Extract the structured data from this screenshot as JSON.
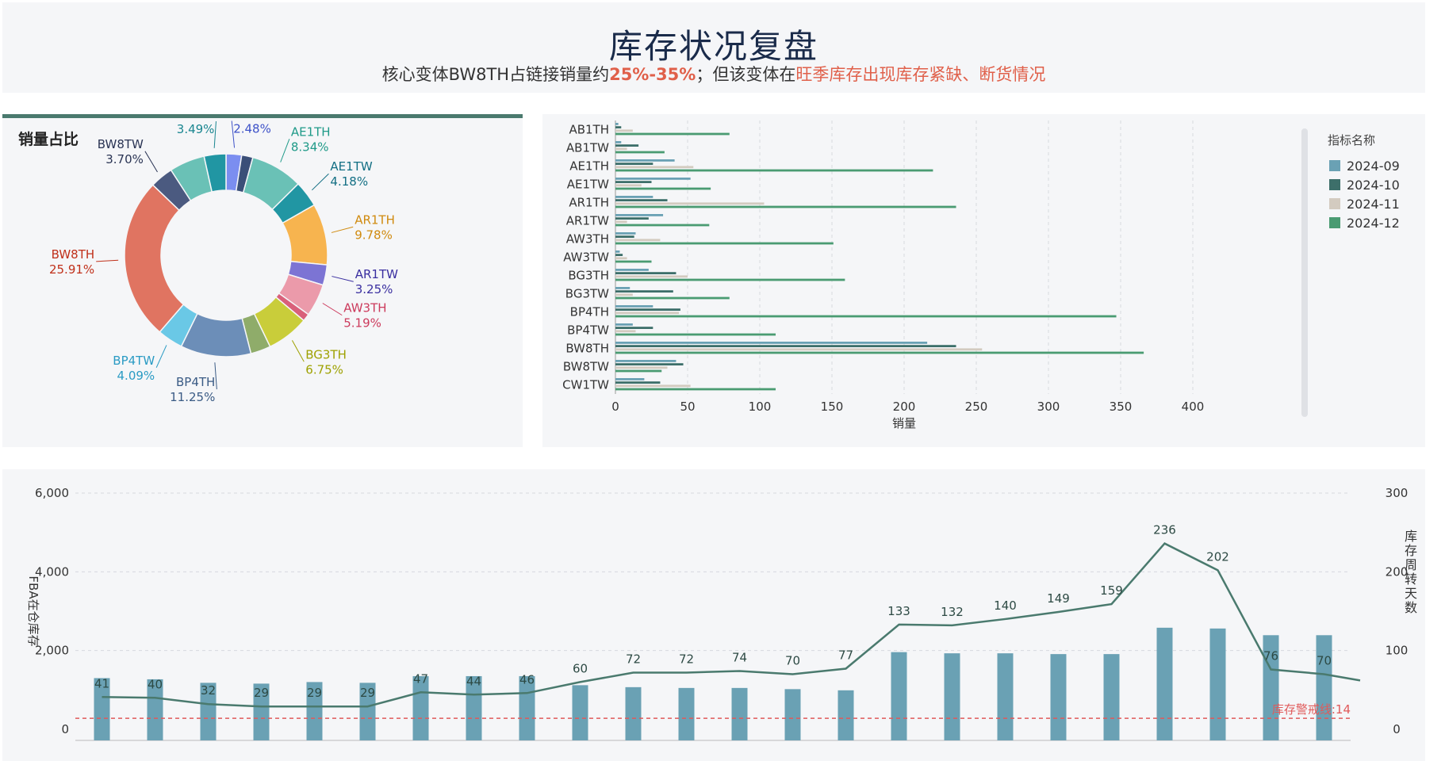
{
  "header": {
    "title": "库存状况复盘",
    "subtitle_parts": [
      "核心变体BW8TH占链接销量约",
      "25%-35%",
      "；但该变体在",
      "旺季库存出现库存紧缺、断货情况"
    ]
  },
  "colors": {
    "accent": "#e0604a",
    "title": "#1a2b4a",
    "teal_bar": "#6aa1b4",
    "line": "#4a7a6e",
    "warning": "#e05a5a"
  },
  "pie_panel": {
    "title": "销量占比"
  },
  "bar_panel": {
    "legend_title": "指标名称",
    "x_axis_label": "销量"
  },
  "combo_panel": {
    "y_left_label": "FBA在仓库存",
    "y_right_label": "库存周转天数",
    "warning_label": "库存警戒线:14"
  },
  "chart_data": [
    {
      "type": "pie",
      "title": "销量占比",
      "slices": [
        {
          "name": "AB1TH",
          "pct": 2.48,
          "color": "#7b8ef0"
        },
        {
          "name": "AB1TW",
          "pct": 1.8,
          "color": "#3b4f78"
        },
        {
          "name": "AE1TH",
          "pct": 8.34,
          "color": "#6ac1b6"
        },
        {
          "name": "AE1TW",
          "pct": 4.18,
          "color": "#2196a3"
        },
        {
          "name": "AR1TH",
          "pct": 9.78,
          "color": "#f7b44f"
        },
        {
          "name": "AR1TW",
          "pct": 3.25,
          "color": "#7c74d4"
        },
        {
          "name": "AW3TH",
          "pct": 5.19,
          "color": "#eb9aaa"
        },
        {
          "name": "AW3TW",
          "pct": 1.2,
          "color": "#d9607a"
        },
        {
          "name": "BG3TH",
          "pct": 6.75,
          "color": "#c9cd3a"
        },
        {
          "name": "BG3TW",
          "pct": 3.2,
          "color": "#8fac6a"
        },
        {
          "name": "BP4TH",
          "pct": 11.25,
          "color": "#6c8eb8"
        },
        {
          "name": "BP4TW",
          "pct": 4.09,
          "color": "#6ac8e6"
        },
        {
          "name": "BW8TH",
          "pct": 25.91,
          "color": "#e07461"
        },
        {
          "name": "BW8TW",
          "pct": 3.7,
          "color": "#4b5a80"
        },
        {
          "name": "CW1TH",
          "pct": 5.66,
          "color": "#6ac1b6"
        },
        {
          "name": "CW1TW",
          "pct": 3.49,
          "color": "#2196a3"
        }
      ],
      "labels": [
        {
          "name": "AB1TH",
          "text": "2.48%",
          "color": "#3e52c8"
        },
        {
          "name": "AE1TH",
          "text": "8.34%",
          "color": "#1f9a88"
        },
        {
          "name": "AE1TW",
          "text": "4.18%",
          "color": "#136f84"
        },
        {
          "name": "AR1TH",
          "text": "9.78%",
          "color": "#d08a0e"
        },
        {
          "name": "AR1TW",
          "text": "3.25%",
          "color": "#3a2fa0"
        },
        {
          "name": "AW3TH",
          "text": "5.19%",
          "color": "#cc3a5c"
        },
        {
          "name": "BG3TH",
          "text": "6.75%",
          "color": "#9ea100"
        },
        {
          "name": "BP4TH",
          "text": "11.25%",
          "color": "#3a5b85"
        },
        {
          "name": "BP4TW",
          "text": "4.09%",
          "color": "#2a9bc4"
        },
        {
          "name": "BW8TH",
          "text": "25.91%",
          "color": "#c0301a"
        },
        {
          "name": "BW8TW",
          "text": "3.70%",
          "color": "#2a3454"
        },
        {
          "name": "CW1TW",
          "text": "3.49%",
          "color": "#1a8690"
        }
      ]
    },
    {
      "type": "bar",
      "orientation": "horizontal",
      "categories": [
        "AB1TH",
        "AB1TW",
        "AE1TH",
        "AE1TW",
        "AR1TH",
        "AR1TW",
        "AW3TH",
        "AW3TW",
        "BG3TH",
        "BG3TW",
        "BP4TH",
        "BP4TW",
        "BW8TH",
        "BW8TW",
        "CW1TW"
      ],
      "xlabel": "销量",
      "xlim": [
        0,
        400
      ],
      "xticks": [
        0,
        50,
        100,
        150,
        200,
        250,
        300,
        350,
        400
      ],
      "legend_title": "指标名称",
      "legend_position": "right",
      "series": [
        {
          "name": "2024-09",
          "color": "#6aa1b4",
          "values": [
            2,
            4,
            41,
            52,
            26,
            33,
            14,
            3,
            23,
            10,
            26,
            12,
            216,
            42,
            20
          ]
        },
        {
          "name": "2024-10",
          "color": "#3d6f6a",
          "values": [
            4,
            16,
            26,
            25,
            36,
            23,
            13,
            5,
            42,
            40,
            45,
            26,
            236,
            47,
            31
          ]
        },
        {
          "name": "2024-11",
          "color": "#d3cbc0",
          "values": [
            12,
            8,
            54,
            18,
            103,
            8,
            31,
            8,
            50,
            12,
            44,
            14,
            254,
            36,
            52
          ]
        },
        {
          "name": "2024-12",
          "color": "#4a9b72",
          "values": [
            79,
            34,
            220,
            66,
            236,
            65,
            151,
            25,
            159,
            79,
            347,
            111,
            366,
            32,
            111
          ]
        }
      ]
    },
    {
      "type": "bar+line",
      "x_count": 24,
      "y_left": {
        "label": "FBA在仓库存",
        "ticks": [
          0,
          2000,
          4000,
          6000
        ],
        "tick_labels": [
          "0",
          "2,000",
          "4,000",
          "6,000"
        ],
        "lim": [
          0,
          6000
        ]
      },
      "y_right": {
        "label": "库存周转天数",
        "ticks": [
          0,
          100,
          200,
          300
        ],
        "tick_labels": [
          "0",
          "100",
          "200",
          "300"
        ],
        "lim": [
          0,
          300
        ]
      },
      "bars": [
        1300,
        1270,
        1180,
        1160,
        1200,
        1180,
        1350,
        1350,
        1350,
        1120,
        1070,
        1050,
        1050,
        1020,
        990,
        1960,
        1930,
        1930,
        1910,
        1910,
        2580,
        2560,
        2390,
        2390
      ],
      "line": [
        41,
        40,
        32,
        29,
        29,
        29,
        47,
        44,
        46,
        60,
        72,
        72,
        74,
        70,
        77,
        133,
        132,
        140,
        149,
        159,
        236,
        202,
        76,
        70
      ],
      "line_tail": 62,
      "line_labels": [
        "41",
        "40",
        "32",
        "29",
        "29",
        "29",
        "47",
        "44",
        "46",
        "60",
        "72",
        "72",
        "74",
        "70",
        "77",
        "133",
        "132",
        "140",
        "149",
        "159",
        "236",
        "202",
        "76",
        "70"
      ],
      "warning_line": 14,
      "warning_label": "库存警戒线:14"
    }
  ]
}
